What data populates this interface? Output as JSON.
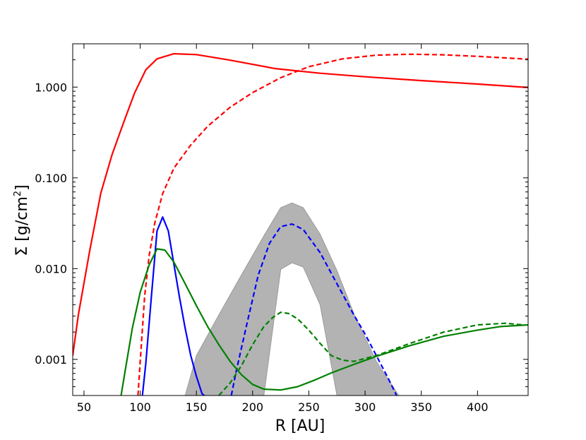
{
  "chart_data": {
    "type": "line",
    "xlabel": "R [AU]",
    "ylabel": "Σ [g/cm²]",
    "ylabel_parts": {
      "prefix": "Σ [g/cm",
      "sup": "2",
      "suffix": "]"
    },
    "xlim": [
      40,
      445
    ],
    "ylim": [
      0.0004,
      3.0
    ],
    "yscale": "log",
    "grid": false,
    "x_ticks": [
      50,
      100,
      150,
      200,
      250,
      300,
      350,
      400
    ],
    "y_ticks": [
      {
        "value": 0.001,
        "label": "0.001"
      },
      {
        "value": 0.01,
        "label": "0.010"
      },
      {
        "value": 0.1,
        "label": "0.100"
      },
      {
        "value": 1.0,
        "label": "1.000"
      }
    ],
    "band": {
      "color": "#b3b3b3",
      "x": [
        140,
        150,
        170,
        190,
        210,
        225,
        235,
        245,
        260,
        275,
        290,
        310,
        330
      ],
      "upper": [
        0.0004,
        0.0011,
        0.0031,
        0.0085,
        0.023,
        0.047,
        0.053,
        0.047,
        0.024,
        0.0095,
        0.0032,
        0.00095,
        0.0004
      ],
      "lower": [
        0.0004,
        0.0004,
        0.0004,
        0.0004,
        0.0004,
        0.0098,
        0.0116,
        0.0104,
        0.004,
        0.0004,
        0.0004,
        0.0004,
        0.0004
      ]
    },
    "series": [
      {
        "color": "#ff0000",
        "style": "solid",
        "x": [
          40,
          45,
          55,
          65,
          75,
          85,
          95,
          105,
          115,
          130,
          150,
          180,
          220,
          260,
          300,
          350,
          400,
          445
        ],
        "y": [
          0.0011,
          0.0031,
          0.0155,
          0.068,
          0.18,
          0.4,
          0.86,
          1.55,
          2.05,
          2.33,
          2.28,
          1.98,
          1.6,
          1.42,
          1.3,
          1.18,
          1.08,
          0.99
        ]
      },
      {
        "color": "#ff0000",
        "style": "dashed",
        "x": [
          98,
          100,
          104,
          108,
          113,
          120,
          130,
          145,
          160,
          180,
          200,
          225,
          250,
          280,
          310,
          340,
          370,
          400,
          445
        ],
        "y": [
          0.0004,
          0.00095,
          0.005,
          0.014,
          0.032,
          0.067,
          0.128,
          0.23,
          0.37,
          0.6,
          0.87,
          1.27,
          1.68,
          2.05,
          2.25,
          2.3,
          2.27,
          2.18,
          2.03
        ]
      },
      {
        "color": "#0000ff",
        "style": "solid",
        "x": [
          102,
          105,
          110,
          115,
          120,
          125,
          130,
          135,
          140,
          145,
          150,
          155,
          157
        ],
        "y": [
          0.0004,
          0.0009,
          0.005,
          0.026,
          0.037,
          0.026,
          0.0112,
          0.0048,
          0.0022,
          0.0011,
          0.00065,
          0.00042,
          0.0004
        ]
      },
      {
        "color": "#0000ff",
        "style": "dashed",
        "x": [
          181,
          186,
          195,
          205,
          215,
          225,
          235,
          245,
          260,
          275,
          290,
          300,
          310,
          320,
          328
        ],
        "y": [
          0.0004,
          0.0008,
          0.0025,
          0.0085,
          0.019,
          0.029,
          0.031,
          0.027,
          0.015,
          0.0068,
          0.0031,
          0.0019,
          0.0011,
          0.00064,
          0.0004
        ]
      },
      {
        "color": "#008000",
        "style": "solid",
        "x": [
          83,
          87,
          93,
          100,
          108,
          115,
          122,
          130,
          140,
          150,
          160,
          170,
          180,
          190,
          200,
          210,
          225,
          240,
          255,
          270,
          290,
          310,
          340,
          370,
          400,
          420,
          445
        ],
        "y": [
          0.0004,
          0.0008,
          0.0022,
          0.0055,
          0.011,
          0.0165,
          0.016,
          0.0118,
          0.0068,
          0.0039,
          0.0023,
          0.00145,
          0.00095,
          0.00068,
          0.00053,
          0.00047,
          0.00046,
          0.0005,
          0.00059,
          0.00071,
          0.00088,
          0.00108,
          0.00142,
          0.0018,
          0.0021,
          0.0023,
          0.0024
        ]
      },
      {
        "color": "#008000",
        "style": "dashed",
        "x": [
          170,
          180,
          190,
          200,
          210,
          218,
          225,
          232,
          240,
          250,
          260,
          270,
          280,
          290,
          310,
          340,
          370,
          400,
          425,
          440
        ],
        "y": [
          0.0004,
          0.00055,
          0.00085,
          0.00145,
          0.0023,
          0.0029,
          0.0033,
          0.0032,
          0.0028,
          0.0021,
          0.0015,
          0.0011,
          0.00098,
          0.00095,
          0.0011,
          0.0015,
          0.002,
          0.0024,
          0.0025,
          0.0024
        ]
      }
    ]
  }
}
